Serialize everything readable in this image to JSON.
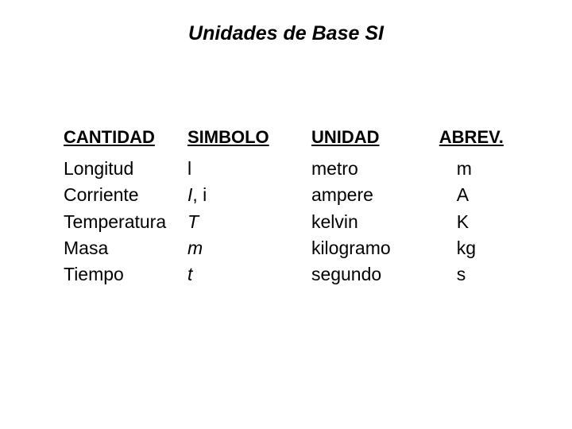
{
  "title": "Unidades de Base SI",
  "headers": {
    "cantidad": "CANTIDAD",
    "simbolo": "SIMBOLO",
    "unidad": "UNIDAD",
    "abrev": "ABREV."
  },
  "rows": {
    "cantidad": [
      "Longitud",
      "Corriente",
      "Temperatura",
      "Masa",
      "Tiempo"
    ],
    "simbolo_plain": [
      "l",
      "",
      "T",
      "m",
      "t"
    ],
    "unidad": [
      "metro",
      "ampere",
      "kelvin",
      "kilogramo",
      "segundo"
    ],
    "abrev": [
      "m",
      "A",
      "K",
      "kg",
      "s"
    ]
  },
  "symbol_corriente": {
    "italic_part": "I",
    "rest": ", i"
  },
  "styling": {
    "background_color": "#ffffff",
    "text_color": "#000000",
    "title_fontsize": 25,
    "header_fontsize": 22,
    "cell_fontsize": 23,
    "font_family": "Arial"
  }
}
